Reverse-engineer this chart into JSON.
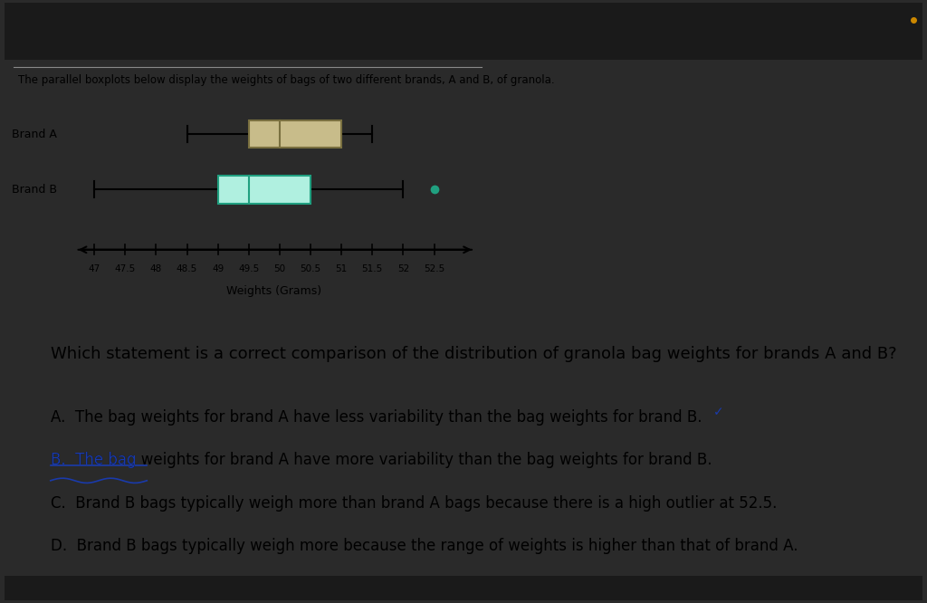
{
  "background_color": "#2a2a2a",
  "panel_bg": "#f0f0f0",
  "header_line_color": "#888888",
  "header_text": "The parallel boxplots below display the weights of bags of two different brands, A and B, of granola.",
  "header_fontsize": 8.5,
  "brand_a": {
    "label": "Brand A",
    "whisker_low": 48.5,
    "q1": 49.5,
    "median": 50.0,
    "q3": 51.0,
    "whisker_high": 51.5,
    "outliers": [],
    "box_facecolor": "#c8bc8a",
    "box_edgecolor": "#7a7040",
    "whisker_color": "#000000",
    "median_color": "#7a7040"
  },
  "brand_b": {
    "label": "Brand B",
    "whisker_low": 47.0,
    "q1": 49.0,
    "median": 49.5,
    "q3": 50.5,
    "whisker_high": 52.0,
    "outliers": [
      52.5
    ],
    "box_facecolor": "#b0f0e0",
    "box_edgecolor": "#20a080",
    "whisker_color": "#000000",
    "median_color": "#20a080",
    "outlier_color": "#20a080"
  },
  "axis_min": 46.6,
  "axis_max": 53.2,
  "tick_positions": [
    47,
    47.5,
    48,
    48.5,
    49,
    49.5,
    50,
    50.5,
    51,
    51.5,
    52,
    52.5
  ],
  "tick_labels": [
    "47",
    "47.5",
    "48",
    "48.5",
    "49",
    "49.5",
    "50",
    "50.5",
    "51",
    "51.5",
    "52",
    "52.5"
  ],
  "xlabel": "Weights (Grams)",
  "xlabel_fontsize": 9,
  "tick_fontsize": 8,
  "question": "Which statement is a correct comparison of the distribution of granola bag weights for brands A and B?",
  "question_fontsize": 13,
  "answers": [
    {
      "label": "A.  ",
      "text": "The bag weights for brand A have less variability than the bag weights for brand B.",
      "strikethrough": false,
      "checkmark": true,
      "checkmark_color": "#1a3aaa"
    },
    {
      "label": "B.  ",
      "text": "The bag weights for brand A have more variability than the bag weights for brand B.",
      "strikethrough": true,
      "checkmark": false,
      "strike_color": "#1a3aaa"
    },
    {
      "label": "C.  ",
      "text": "Brand B bags typically weigh more than brand A bags because there is a high outlier at 52.5.",
      "strikethrough": false,
      "checkmark": false
    },
    {
      "label": "D.  ",
      "text": "Brand B bags typically weigh more because the range of weights is higher than that of brand A.",
      "strikethrough": false,
      "checkmark": false
    }
  ],
  "answer_fontsize": 12
}
